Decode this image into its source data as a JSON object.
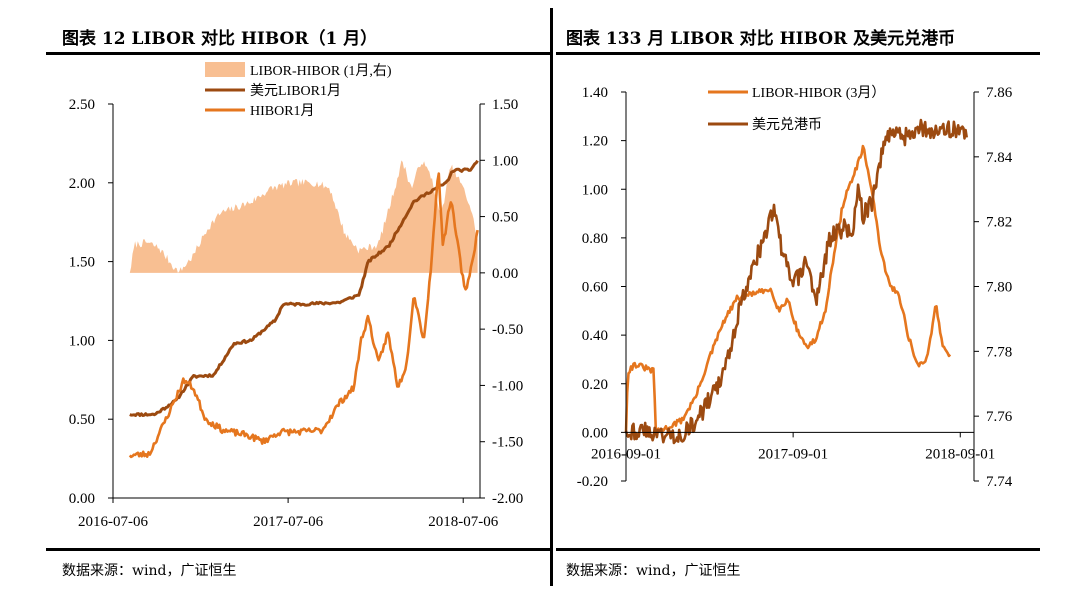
{
  "panels": [
    {
      "title": "图表 12 LIBOR 对比 HIBOR（1 月）",
      "source": "数据来源：wind，广证恒生"
    },
    {
      "title": "图表 133 月 LIBOR 对比 HIBOR 及美元兑港币",
      "source": "数据来源：wind，广证恒生"
    }
  ],
  "chart_data": [
    {
      "type": "line",
      "x_ticks": [
        "2016-07-06",
        "2017-07-06",
        "2018-07-06"
      ],
      "x_range": [
        "2016-07-06",
        "2018-08-10"
      ],
      "ylim_left": [
        0,
        2.5
      ],
      "yticks_left": [
        "0.00",
        "0.50",
        "1.00",
        "1.50",
        "2.00",
        "2.50"
      ],
      "ylim_right": [
        -2,
        1.5
      ],
      "yticks_right": [
        "-2.00",
        "-1.50",
        "-1.00",
        "-0.50",
        "0.00",
        "0.50",
        "1.00",
        "1.50"
      ],
      "legend": [
        "LIBOR-HIBOR (1月,右)",
        "美元LIBOR1月",
        "HIBOR1月"
      ],
      "legend_position": "top-center",
      "colors": {
        "spread": "#f8bf92",
        "libor": "#9c4a10",
        "hibor": "#e5761e"
      },
      "series": [
        {
          "name": "LIBOR-HIBOR (1月,右)",
          "type": "area",
          "axis": "right",
          "points": [
            [
              "2016-08-10",
              0.0
            ],
            [
              "2016-08-20",
              0.25
            ],
            [
              "2016-09-15",
              0.27
            ],
            [
              "2016-10-10",
              0.22
            ],
            [
              "2016-11-01",
              0.1
            ],
            [
              "2016-11-20",
              0.0
            ],
            [
              "2016-12-20",
              0.15
            ],
            [
              "2017-01-20",
              0.4
            ],
            [
              "2017-02-15",
              0.53
            ],
            [
              "2017-03-20",
              0.58
            ],
            [
              "2017-04-20",
              0.63
            ],
            [
              "2017-06-01",
              0.75
            ],
            [
              "2017-07-15",
              0.8
            ],
            [
              "2017-09-01",
              0.8
            ],
            [
              "2017-10-01",
              0.75
            ],
            [
              "2017-11-01",
              0.35
            ],
            [
              "2017-12-01",
              0.2
            ],
            [
              "2018-01-10",
              0.25
            ],
            [
              "2018-02-10",
              0.7
            ],
            [
              "2018-03-01",
              1.0
            ],
            [
              "2018-03-20",
              0.75
            ],
            [
              "2018-04-10",
              1.0
            ],
            [
              "2018-05-01",
              0.85
            ],
            [
              "2018-05-20",
              0.5
            ],
            [
              "2018-06-10",
              0.95
            ],
            [
              "2018-07-01",
              0.8
            ],
            [
              "2018-07-20",
              0.6
            ],
            [
              "2018-08-05",
              0.3
            ]
          ]
        },
        {
          "name": "美元LIBOR1月",
          "axis": "left",
          "points": [
            [
              "2016-08-10",
              0.53
            ],
            [
              "2016-10-01",
              0.53
            ],
            [
              "2016-11-15",
              0.62
            ],
            [
              "2016-12-20",
              0.77
            ],
            [
              "2017-02-01",
              0.78
            ],
            [
              "2017-03-15",
              0.98
            ],
            [
              "2017-04-20",
              1.0
            ],
            [
              "2017-06-10",
              1.13
            ],
            [
              "2017-06-25",
              1.23
            ],
            [
              "2017-08-01",
              1.23
            ],
            [
              "2017-10-20",
              1.24
            ],
            [
              "2017-12-01",
              1.29
            ],
            [
              "2017-12-20",
              1.5
            ],
            [
              "2018-02-01",
              1.6
            ],
            [
              "2018-03-10",
              1.8
            ],
            [
              "2018-03-25",
              1.88
            ],
            [
              "2018-05-01",
              1.95
            ],
            [
              "2018-06-01",
              2.0
            ],
            [
              "2018-06-15",
              2.08
            ],
            [
              "2018-07-20",
              2.08
            ],
            [
              "2018-08-05",
              2.14
            ]
          ]
        },
        {
          "name": "HIBOR1月",
          "axis": "left",
          "points": [
            [
              "2016-08-10",
              0.27
            ],
            [
              "2016-09-20",
              0.28
            ],
            [
              "2016-11-01",
              0.55
            ],
            [
              "2016-12-01",
              0.75
            ],
            [
              "2016-12-20",
              0.7
            ],
            [
              "2017-01-15",
              0.5
            ],
            [
              "2017-02-20",
              0.43
            ],
            [
              "2017-04-10",
              0.4
            ],
            [
              "2017-05-15",
              0.36
            ],
            [
              "2017-06-20",
              0.42
            ],
            [
              "2017-08-01",
              0.42
            ],
            [
              "2017-09-15",
              0.43
            ],
            [
              "2017-10-20",
              0.6
            ],
            [
              "2017-11-20",
              0.7
            ],
            [
              "2017-12-05",
              1.0
            ],
            [
              "2017-12-20",
              1.15
            ],
            [
              "2018-01-10",
              0.85
            ],
            [
              "2018-01-30",
              1.05
            ],
            [
              "2018-02-20",
              0.7
            ],
            [
              "2018-03-10",
              0.85
            ],
            [
              "2018-03-25",
              1.3
            ],
            [
              "2018-04-15",
              1.0
            ],
            [
              "2018-05-01",
              1.5
            ],
            [
              "2018-05-15",
              2.1
            ],
            [
              "2018-05-25",
              1.6
            ],
            [
              "2018-06-10",
              1.9
            ],
            [
              "2018-06-25",
              1.6
            ],
            [
              "2018-07-10",
              1.3
            ],
            [
              "2018-07-25",
              1.5
            ],
            [
              "2018-08-05",
              1.7
            ]
          ]
        }
      ]
    },
    {
      "type": "line",
      "x_ticks": [
        "2016-09-01",
        "2017-09-01",
        "2018-09-01"
      ],
      "x_range": [
        "2016-09-01",
        "2018-10-01"
      ],
      "ylim_left": [
        -0.2,
        1.4
      ],
      "yticks_left": [
        "-0.20",
        "0.00",
        "0.20",
        "0.40",
        "0.60",
        "0.80",
        "1.00",
        "1.20",
        "1.40"
      ],
      "ylim_right": [
        7.74,
        7.86
      ],
      "yticks_right": [
        "7.74",
        "7.76",
        "7.78",
        "7.80",
        "7.82",
        "7.84",
        "7.86"
      ],
      "legend": [
        "LIBOR-HIBOR (3月）",
        "美元兑港币"
      ],
      "legend_position": "top-center",
      "colors": {
        "spread": "#e5761e",
        "fx": "#9c4a10"
      },
      "series": [
        {
          "name": "LIBOR-HIBOR (3月）",
          "axis": "left",
          "points": [
            [
              "2016-09-01",
              0.0
            ],
            [
              "2016-09-05",
              0.25
            ],
            [
              "2016-09-20",
              0.28
            ],
            [
              "2016-10-20",
              0.26
            ],
            [
              "2016-11-01",
              0.25
            ],
            [
              "2016-11-05",
              0.0
            ],
            [
              "2016-12-01",
              0.02
            ],
            [
              "2017-01-01",
              0.05
            ],
            [
              "2017-02-01",
              0.15
            ],
            [
              "2017-03-01",
              0.3
            ],
            [
              "2017-04-01",
              0.45
            ],
            [
              "2017-05-01",
              0.55
            ],
            [
              "2017-06-01",
              0.57
            ],
            [
              "2017-07-01",
              0.58
            ],
            [
              "2017-07-15",
              0.59
            ],
            [
              "2017-08-01",
              0.5
            ],
            [
              "2017-08-20",
              0.55
            ],
            [
              "2017-09-10",
              0.42
            ],
            [
              "2017-10-01",
              0.35
            ],
            [
              "2017-10-20",
              0.38
            ],
            [
              "2017-11-10",
              0.5
            ],
            [
              "2017-12-01",
              0.75
            ],
            [
              "2017-12-20",
              0.95
            ],
            [
              "2018-01-20",
              1.1
            ],
            [
              "2018-02-01",
              1.17
            ],
            [
              "2018-02-20",
              1.0
            ],
            [
              "2018-03-10",
              0.75
            ],
            [
              "2018-04-01",
              0.6
            ],
            [
              "2018-04-20",
              0.57
            ],
            [
              "2018-05-10",
              0.4
            ],
            [
              "2018-06-01",
              0.27
            ],
            [
              "2018-06-20",
              0.3
            ],
            [
              "2018-07-10",
              0.53
            ],
            [
              "2018-07-25",
              0.35
            ],
            [
              "2018-08-10",
              0.32
            ]
          ]
        },
        {
          "name": "美元兑港币",
          "axis": "right",
          "points": [
            [
              "2016-09-01",
              7.7555
            ],
            [
              "2016-10-01",
              7.7555
            ],
            [
              "2016-11-01",
              7.755
            ],
            [
              "2016-12-01",
              7.754
            ],
            [
              "2017-01-01",
              7.7545
            ],
            [
              "2017-02-01",
              7.758
            ],
            [
              "2017-03-01",
              7.765
            ],
            [
              "2017-04-01",
              7.772
            ],
            [
              "2017-05-01",
              7.79
            ],
            [
              "2017-06-01",
              7.805
            ],
            [
              "2017-07-01",
              7.815
            ],
            [
              "2017-07-20",
              7.824
            ],
            [
              "2017-08-10",
              7.81
            ],
            [
              "2017-09-01",
              7.8
            ],
            [
              "2017-10-01",
              7.808
            ],
            [
              "2017-10-20",
              7.795
            ],
            [
              "2017-11-20",
              7.815
            ],
            [
              "2017-12-20",
              7.818
            ],
            [
              "2018-01-10",
              7.817
            ],
            [
              "2018-01-20",
              7.83
            ],
            [
              "2018-02-01",
              7.822
            ],
            [
              "2018-02-20",
              7.826
            ],
            [
              "2018-03-20",
              7.845
            ],
            [
              "2018-04-10",
              7.849
            ],
            [
              "2018-05-01",
              7.846
            ],
            [
              "2018-06-01",
              7.849
            ],
            [
              "2018-07-01",
              7.848
            ],
            [
              "2018-08-01",
              7.848
            ],
            [
              "2018-08-30",
              7.849
            ],
            [
              "2018-09-15",
              7.846
            ]
          ]
        }
      ]
    }
  ]
}
